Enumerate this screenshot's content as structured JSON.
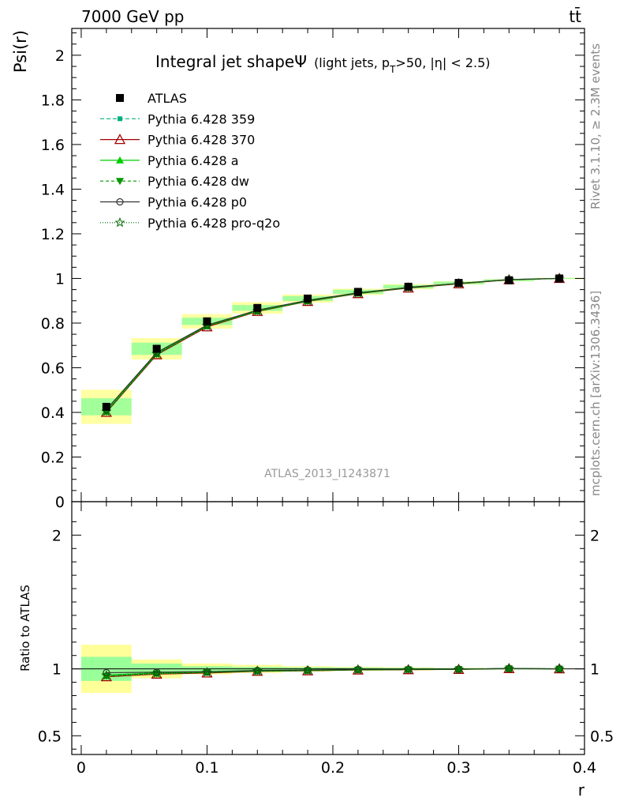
{
  "header": {
    "left": "7000 GeV pp",
    "right": "tt̄"
  },
  "side_labels": {
    "rivet": "Rivet 3.1.10, ≥ 2.3M events",
    "mcplots": "mcplots.cern.ch [arXiv:1306.3436]"
  },
  "chart_data": {
    "type": "line",
    "title_main": "Integral jet shapeΨ",
    "title_sub_prefix": "(light jets, p",
    "title_sub_sub": "T",
    "title_sub_suffix": ">50, |η| < 2.5)",
    "xlabel": "r",
    "ylabel": "Psi(r)",
    "ratio_ylabel": "Ratio to ATLAS",
    "watermark": "ATLAS_2013_I1243871",
    "xlim": [
      -0.0075,
      0.4
    ],
    "ylim": [
      0,
      2.12
    ],
    "ratio_ylim": [
      0.36,
      2.25
    ],
    "x_ticks": [
      0,
      0.1,
      0.2,
      0.3,
      0.4
    ],
    "x_tick_labels": [
      "0",
      "0.1",
      "0.2",
      "0.3",
      "0.4"
    ],
    "y_ticks": [
      0,
      0.2,
      0.4,
      0.6,
      0.8,
      1,
      1.2,
      1.4,
      1.6,
      1.8,
      2
    ],
    "y_tick_labels": [
      "0",
      "0.2",
      "0.4",
      "0.6",
      "0.8",
      "1",
      "1.2",
      "1.4",
      "1.6",
      "1.8",
      "2"
    ],
    "ratio_ticks": [
      0.5,
      1,
      2
    ],
    "ratio_tick_labels": [
      "0.5",
      "1",
      "2"
    ],
    "bin_edges": [
      0,
      0.04,
      0.08,
      0.12,
      0.16,
      0.2,
      0.24,
      0.28,
      0.32,
      0.36,
      0.4
    ],
    "x": [
      0.02,
      0.06,
      0.1,
      0.14,
      0.18,
      0.22,
      0.26,
      0.3,
      0.34,
      0.38
    ],
    "data": {
      "name": "ATLAS",
      "values": [
        0.425,
        0.685,
        0.808,
        0.868,
        0.91,
        0.94,
        0.963,
        0.98,
        0.992,
        1.0
      ],
      "band_inner": [
        0.09,
        0.04,
        0.02,
        0.015,
        0.012,
        0.01,
        0.008,
        0.006,
        0.004,
        0.002
      ],
      "band_outer": [
        0.18,
        0.07,
        0.04,
        0.03,
        0.02,
        0.015,
        0.012,
        0.008,
        0.005,
        0.003
      ]
    },
    "series": [
      {
        "name": "Pythia 6.428 359",
        "color": "#00b080",
        "dash": "5,3",
        "marker": "square-small",
        "values": [
          0.405,
          0.665,
          0.79,
          0.855,
          0.9,
          0.935,
          0.96,
          0.978,
          0.995,
          1.0
        ]
      },
      {
        "name": "Pythia 6.428 370",
        "color": "#a00000",
        "dash": "",
        "marker": "triangle-open",
        "values": [
          0.4,
          0.658,
          0.783,
          0.852,
          0.897,
          0.932,
          0.957,
          0.976,
          0.994,
          1.0
        ]
      },
      {
        "name": "Pythia 6.428 a",
        "color": "#00cc00",
        "dash": "",
        "marker": "triangle",
        "values": [
          0.405,
          0.664,
          0.788,
          0.854,
          0.899,
          0.934,
          0.959,
          0.977,
          0.995,
          1.0
        ]
      },
      {
        "name": "Pythia 6.428 dw",
        "color": "#009900",
        "dash": "4,3",
        "marker": "triangle-down",
        "values": [
          0.402,
          0.66,
          0.786,
          0.853,
          0.898,
          0.933,
          0.958,
          0.977,
          0.994,
          1.0
        ]
      },
      {
        "name": "Pythia 6.428 p0",
        "color": "#333333",
        "dash": "",
        "marker": "circle-open",
        "values": [
          0.413,
          0.668,
          0.791,
          0.858,
          0.902,
          0.936,
          0.96,
          0.978,
          0.995,
          1.0
        ]
      },
      {
        "name": "Pythia 6.428 pro-q2o",
        "color": "#006600",
        "dash": "1,2",
        "marker": "star",
        "values": [
          0.404,
          0.662,
          0.787,
          0.854,
          0.899,
          0.934,
          0.959,
          0.977,
          0.995,
          1.0
        ]
      }
    ]
  }
}
